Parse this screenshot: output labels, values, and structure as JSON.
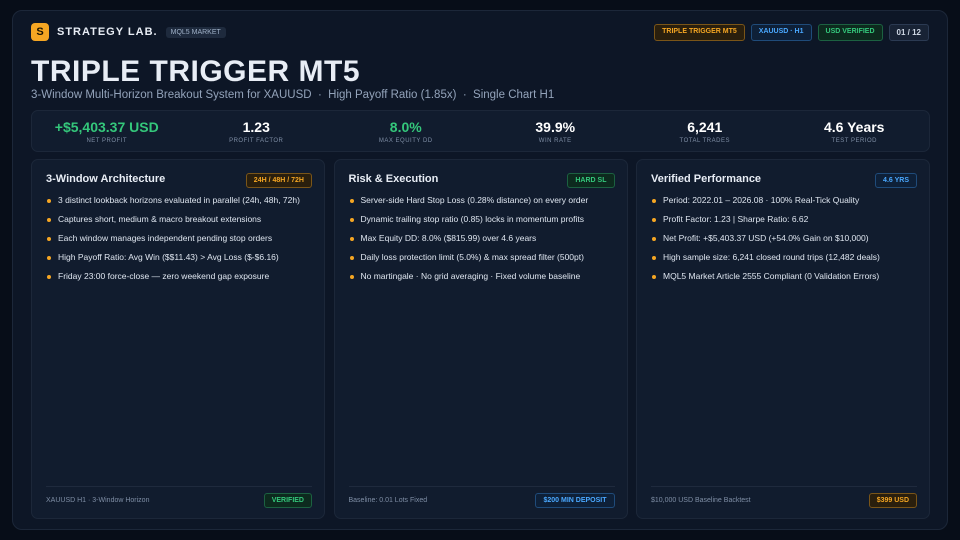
{
  "header": {
    "logo": "S",
    "brand": "STRATEGY LAB.",
    "tag": "MQL5 MARKET",
    "badges": [
      "TRIPLE TRIGGER MT5",
      "XAUUSD · H1",
      "USD VERIFIED"
    ],
    "page": "01 / 12"
  },
  "title": "TRIPLE TRIGGER MT5",
  "subtitle": "3-Window Multi-Horizon Breakout System for XAUUSD  ·  High Payoff Ratio (1.85x)  ·  Single Chart H1",
  "stats": [
    {
      "value": "+$5,403.37 USD",
      "label": "NET PROFIT"
    },
    {
      "value": "1.23",
      "label": "PROFIT FACTOR"
    },
    {
      "value": "8.0%",
      "label": "MAX EQUITY DD"
    },
    {
      "value": "39.9%",
      "label": "WIN RATE"
    },
    {
      "value": "6,241",
      "label": "TOTAL TRADES"
    },
    {
      "value": "4.6 Years",
      "label": "TEST PERIOD"
    }
  ],
  "cards": [
    {
      "title": "3-Window Architecture",
      "badge": "24H / 48H / 72H",
      "items": [
        "3 distinct lookback horizons evaluated in parallel (24h, 48h, 72h)",
        "Captures short, medium & macro breakout extensions",
        "Each window manages independent pending stop orders",
        "High Payoff Ratio: Avg Win ($$11.43) > Avg Loss ($-$6.16)",
        "Friday 23:00 force-close — zero weekend gap exposure"
      ],
      "footer": "XAUUSD H1 · 3-Window Horizon",
      "footer_badge": "VERIFIED"
    },
    {
      "title": "Risk & Execution",
      "badge": "HARD SL",
      "items": [
        "Server-side Hard Stop Loss (0.28% distance) on every order",
        "Dynamic trailing stop ratio (0.85) locks in momentum profits",
        "Max Equity DD: 8.0% ($815.99) over 4.6 years",
        "Daily loss protection limit (5.0%) & max spread filter (500pt)",
        "No martingale · No grid averaging · Fixed volume baseline"
      ],
      "footer": "Baseline: 0.01 Lots Fixed",
      "footer_badge": "$200 MIN DEPOSIT"
    },
    {
      "title": "Verified Performance",
      "badge": "4.6 YRS",
      "items": [
        "Period: 2022.01 – 2026.08 · 100% Real-Tick Quality",
        "Profit Factor: 1.23  |  Sharpe Ratio: 6.62",
        "Net Profit: +$5,403.37 USD (+54.0% Gain on $10,000)",
        "High sample size: 6,241 closed round trips (12,482 deals)",
        "MQL5 Market Article 2555 Compliant (0 Validation Errors)"
      ],
      "footer": "$10,000 USD Baseline Backtest",
      "footer_badge": "$399 USD"
    }
  ]
}
